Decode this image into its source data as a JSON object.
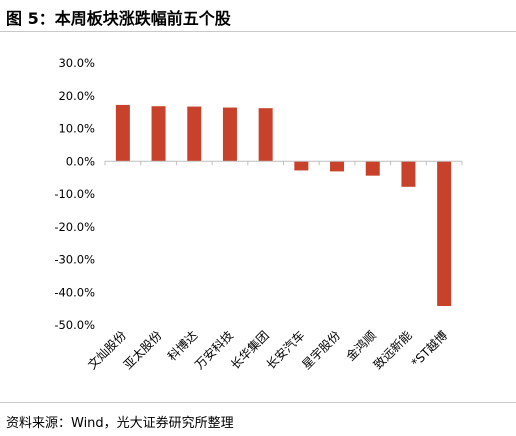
{
  "header": {
    "title": "图 5：本周板块涨跌幅前五个股"
  },
  "footer": {
    "source": "资料来源：Wind，光大证券研究所整理"
  },
  "chart_data": {
    "type": "bar",
    "categories": [
      "文灿股份",
      "亚太股份",
      "科博达",
      "万安科技",
      "长华集团",
      "长安汽车",
      "星宇股份",
      "金鸿顺",
      "致远新能",
      "*ST越博"
    ],
    "values": [
      17.2,
      16.8,
      16.7,
      16.4,
      16.2,
      -2.8,
      -3.1,
      -4.4,
      -7.8,
      -44.2
    ],
    "yticks": [
      30.0,
      20.0,
      10.0,
      0.0,
      -10.0,
      -20.0,
      -30.0,
      -40.0,
      -50.0
    ],
    "ytick_labels": [
      "30.0%",
      "20.0%",
      "10.0%",
      "0.0%",
      "-10.0%",
      "-20.0%",
      "-30.0%",
      "-40.0%",
      "-50.0%"
    ],
    "ylim": [
      -50,
      30
    ],
    "grid": false,
    "legend": "none",
    "bar_color": "#c8412a",
    "axis_color": "#bfbfbf"
  }
}
